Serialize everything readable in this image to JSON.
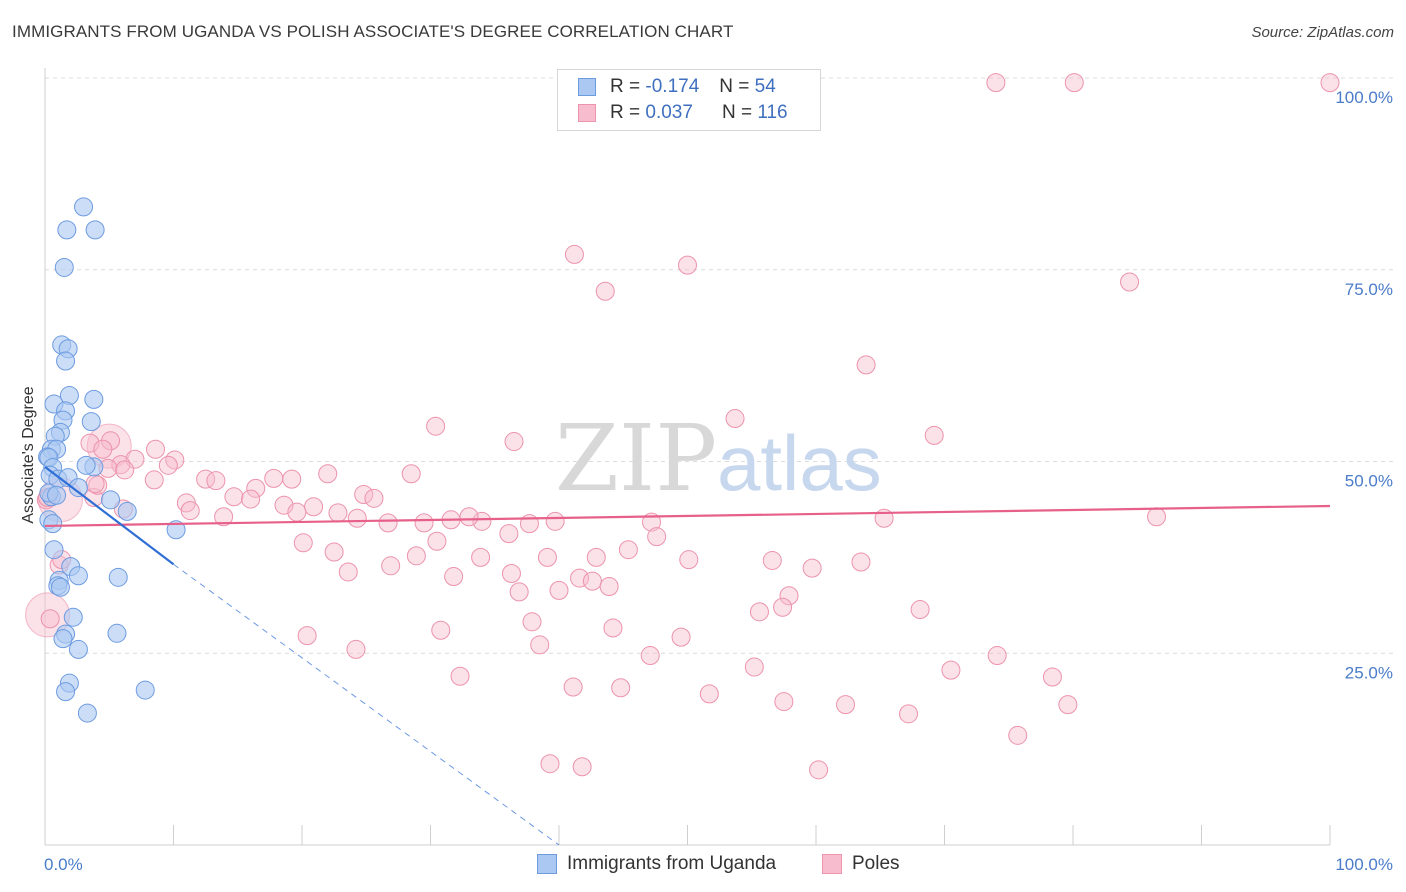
{
  "title": "IMMIGRANTS FROM UGANDA VS POLISH ASSOCIATE'S DEGREE CORRELATION CHART",
  "source": "Source: ZipAtlas.com",
  "watermark": {
    "zip": "ZIP",
    "atlas": "atlas"
  },
  "legend": {
    "rows": [
      {
        "r_label": "R =",
        "r_value": "-0.174",
        "n_label": "N =",
        "n_value": "54"
      },
      {
        "r_label": "R =",
        "r_value": "0.037",
        "n_label": "N =",
        "n_value": "116"
      }
    ]
  },
  "bottom_legend": [
    {
      "label": "Immigrants from Uganda"
    },
    {
      "label": "Poles"
    }
  ],
  "chart_data": {
    "type": "scatter",
    "ylabel": "Associate's Degree",
    "xlim": [
      0,
      100
    ],
    "ylim": [
      0,
      100
    ],
    "x_tick_labels": [
      "0.0%",
      "100.0%"
    ],
    "y_tick_labels": [
      "25.0%",
      "50.0%",
      "75.0%",
      "100.0%"
    ],
    "y_ticks": [
      25,
      50,
      75,
      100
    ],
    "grid": "horizontal dashed",
    "legend_placement": "top-center",
    "colors": {
      "uganda_fill": "#aac8f2",
      "uganda_stroke": "#6d9be0",
      "uganda_line": "#2f6fd6",
      "poles_fill": "#f7bccd",
      "poles_stroke": "#ec93ad",
      "poles_line": "#e6608a"
    },
    "series": [
      {
        "name": "Immigrants from Uganda",
        "trend": {
          "x0": 0,
          "y0": 49.3,
          "x1": 10,
          "y1": 36.6,
          "dash_x1": 40,
          "dash_y1": 0
        },
        "points": [
          [
            3.0,
            83.2
          ],
          [
            1.7,
            80.2
          ],
          [
            3.9,
            80.2
          ],
          [
            1.5,
            75.3
          ],
          [
            1.3,
            65.2
          ],
          [
            1.8,
            64.7
          ],
          [
            1.6,
            63.1
          ],
          [
            1.9,
            58.6
          ],
          [
            3.8,
            58.1
          ],
          [
            0.7,
            57.5
          ],
          [
            1.6,
            56.6
          ],
          [
            1.4,
            55.4
          ],
          [
            3.6,
            55.2
          ],
          [
            1.2,
            53.8
          ],
          [
            0.8,
            53.3
          ],
          [
            0.5,
            51.6
          ],
          [
            0.9,
            51.6
          ],
          [
            0.2,
            50.6
          ],
          [
            0.3,
            50.5
          ],
          [
            0.6,
            49.2
          ],
          [
            3.8,
            49.3
          ],
          [
            3.2,
            49.5
          ],
          [
            0.4,
            48.2
          ],
          [
            1.0,
            47.7
          ],
          [
            1.8,
            47.9
          ],
          [
            2.6,
            46.6
          ],
          [
            0.5,
            45.4
          ],
          [
            0.3,
            45.9
          ],
          [
            0.9,
            45.6
          ],
          [
            5.1,
            45.0
          ],
          [
            6.4,
            43.5
          ],
          [
            0.3,
            42.4
          ],
          [
            0.6,
            41.9
          ],
          [
            10.2,
            41.1
          ],
          [
            0.7,
            38.5
          ],
          [
            2.0,
            36.3
          ],
          [
            2.6,
            35.1
          ],
          [
            5.7,
            34.9
          ],
          [
            1.1,
            34.5
          ],
          [
            1.0,
            33.8
          ],
          [
            1.2,
            33.6
          ],
          [
            2.2,
            29.7
          ],
          [
            1.6,
            27.5
          ],
          [
            5.6,
            27.6
          ],
          [
            1.4,
            26.9
          ],
          [
            2.6,
            25.5
          ],
          [
            1.9,
            21.1
          ],
          [
            1.6,
            20.0
          ],
          [
            7.8,
            20.2
          ],
          [
            3.3,
            17.2
          ]
        ]
      },
      {
        "name": "Poles",
        "trend": {
          "x0": 0,
          "y0": 41.6,
          "x1": 100,
          "y1": 44.2
        },
        "points": [
          [
            74.0,
            99.4
          ],
          [
            80.1,
            99.4
          ],
          [
            100.0,
            99.4
          ],
          [
            41.2,
            77.0
          ],
          [
            50.0,
            75.6
          ],
          [
            43.6,
            72.2
          ],
          [
            84.4,
            73.4
          ],
          [
            63.9,
            62.6
          ],
          [
            53.7,
            55.6
          ],
          [
            30.4,
            54.6
          ],
          [
            69.2,
            53.4
          ],
          [
            36.5,
            52.6
          ],
          [
            3.5,
            52.4
          ],
          [
            5.1,
            52.7
          ],
          [
            4.5,
            51.6
          ],
          [
            8.6,
            51.6
          ],
          [
            10.1,
            50.2
          ],
          [
            7.0,
            50.3
          ],
          [
            5.9,
            49.6
          ],
          [
            9.6,
            49.5
          ],
          [
            4.9,
            49.1
          ],
          [
            6.2,
            48.9
          ],
          [
            22.0,
            48.4
          ],
          [
            28.5,
            48.4
          ],
          [
            17.8,
            47.8
          ],
          [
            19.2,
            47.7
          ],
          [
            8.5,
            47.6
          ],
          [
            12.5,
            47.7
          ],
          [
            13.3,
            47.5
          ],
          [
            16.4,
            46.5
          ],
          [
            24.8,
            45.7
          ],
          [
            14.7,
            45.4
          ],
          [
            3.8,
            45.3
          ],
          [
            25.6,
            45.2
          ],
          [
            16.0,
            45.1
          ],
          [
            11.0,
            44.6
          ],
          [
            18.6,
            44.3
          ],
          [
            20.9,
            44.1
          ],
          [
            6.1,
            43.8
          ],
          [
            11.3,
            43.6
          ],
          [
            19.6,
            43.4
          ],
          [
            22.8,
            43.3
          ],
          [
            13.9,
            42.8
          ],
          [
            24.3,
            42.6
          ],
          [
            31.6,
            42.4
          ],
          [
            34.0,
            42.2
          ],
          [
            39.7,
            42.2
          ],
          [
            47.2,
            42.1
          ],
          [
            29.5,
            42.0
          ],
          [
            37.7,
            41.9
          ],
          [
            65.3,
            42.6
          ],
          [
            33.0,
            42.8
          ],
          [
            26.7,
            42.0
          ],
          [
            36.1,
            40.6
          ],
          [
            47.6,
            40.2
          ],
          [
            30.5,
            39.6
          ],
          [
            20.1,
            39.4
          ],
          [
            22.5,
            38.2
          ],
          [
            28.9,
            37.7
          ],
          [
            39.1,
            37.5
          ],
          [
            42.9,
            37.5
          ],
          [
            33.9,
            37.5
          ],
          [
            45.4,
            38.5
          ],
          [
            50.1,
            37.2
          ],
          [
            56.6,
            37.1
          ],
          [
            63.5,
            36.9
          ],
          [
            26.9,
            36.4
          ],
          [
            23.6,
            35.6
          ],
          [
            36.3,
            35.4
          ],
          [
            31.8,
            35.0
          ],
          [
            41.6,
            34.8
          ],
          [
            42.6,
            34.4
          ],
          [
            43.9,
            33.7
          ],
          [
            40.0,
            33.2
          ],
          [
            36.9,
            33.0
          ],
          [
            57.9,
            32.5
          ],
          [
            55.6,
            30.4
          ],
          [
            57.4,
            31.0
          ],
          [
            37.9,
            29.1
          ],
          [
            44.2,
            28.3
          ],
          [
            30.8,
            28.0
          ],
          [
            20.4,
            27.3
          ],
          [
            49.5,
            27.1
          ],
          [
            38.5,
            26.1
          ],
          [
            24.2,
            25.5
          ],
          [
            47.1,
            24.7
          ],
          [
            55.2,
            23.2
          ],
          [
            70.5,
            22.8
          ],
          [
            32.3,
            22.0
          ],
          [
            41.1,
            20.6
          ],
          [
            44.8,
            20.5
          ],
          [
            51.7,
            19.7
          ],
          [
            57.5,
            18.7
          ],
          [
            62.3,
            18.3
          ],
          [
            67.2,
            17.1
          ],
          [
            79.6,
            18.3
          ],
          [
            75.7,
            14.3
          ],
          [
            39.3,
            10.6
          ],
          [
            41.8,
            10.2
          ],
          [
            60.2,
            9.8
          ],
          [
            4.1,
            46.9
          ],
          [
            3.9,
            47.1
          ],
          [
            1.1,
            36.5
          ],
          [
            1.3,
            37.2
          ],
          [
            0.1,
            45.0
          ],
          [
            0.2,
            45.3
          ],
          [
            0.4,
            29.5
          ],
          [
            86.5,
            42.8
          ],
          [
            74.1,
            24.7
          ],
          [
            78.4,
            21.9
          ],
          [
            68.1,
            30.7
          ],
          [
            59.7,
            36.1
          ]
        ],
        "large_points": [
          [
            5.0,
            52.0
          ],
          [
            1.2,
            45.0
          ],
          [
            0.2,
            30.0
          ]
        ]
      }
    ]
  }
}
